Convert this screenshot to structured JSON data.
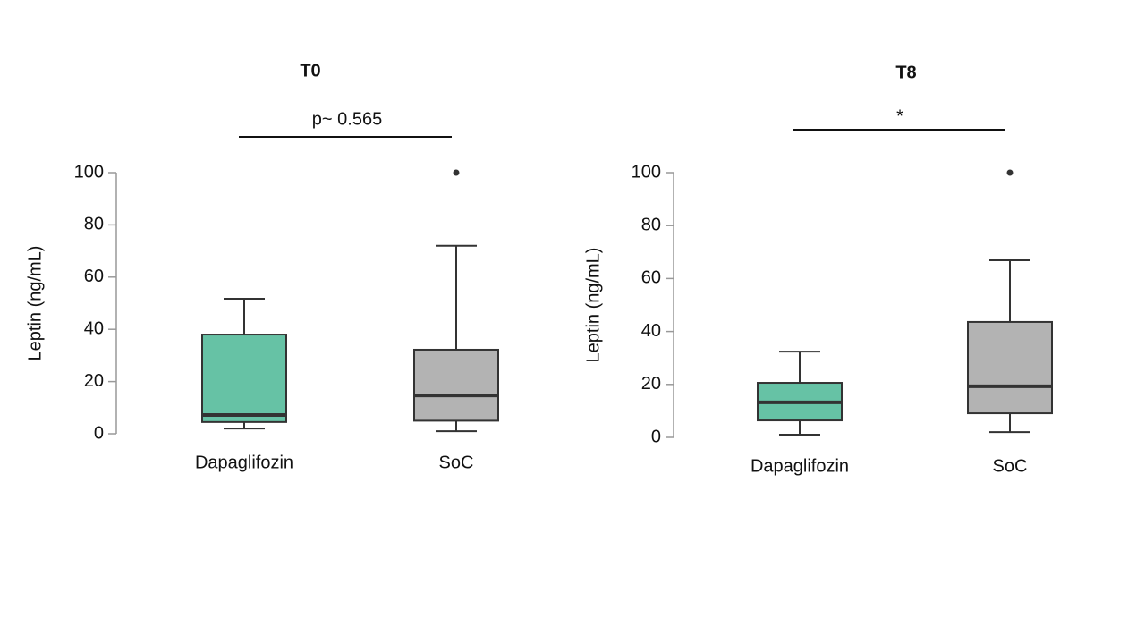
{
  "chart_data": [
    {
      "type": "box",
      "title": "T0",
      "annotation": "p~ 0.565",
      "ylabel": "Leptin (ng/mL)",
      "categories": [
        "Dapaglifozin",
        "SoC"
      ],
      "colors": [
        "#66c2a5",
        "#b3b3b3"
      ],
      "boxes": [
        {
          "low": 2,
          "q1": 4.5,
          "median": 7.2,
          "q3": 38,
          "high": 51.7,
          "outliers": []
        },
        {
          "low": 1,
          "q1": 5,
          "median": 14.7,
          "q3": 32.2,
          "high": 72,
          "outliers": [
            100
          ]
        }
      ],
      "ylim": [
        0,
        100
      ],
      "yticks": [
        0,
        20,
        40,
        60,
        80,
        100
      ]
    },
    {
      "type": "box",
      "title": "T8",
      "annotation": "*",
      "ylabel": "Leptin (ng/mL)",
      "categories": [
        "Dapaglifozin",
        "SoC"
      ],
      "colors": [
        "#66c2a5",
        "#b3b3b3"
      ],
      "boxes": [
        {
          "low": 1,
          "q1": 6.4,
          "median": 13.2,
          "q3": 20.6,
          "high": 32.4,
          "outliers": []
        },
        {
          "low": 2,
          "q1": 9.1,
          "median": 19.3,
          "q3": 43.6,
          "high": 66.9,
          "outliers": [
            100
          ]
        }
      ],
      "ylim": [
        0,
        100
      ],
      "yticks": [
        0,
        20,
        40,
        60,
        80,
        100
      ]
    }
  ]
}
